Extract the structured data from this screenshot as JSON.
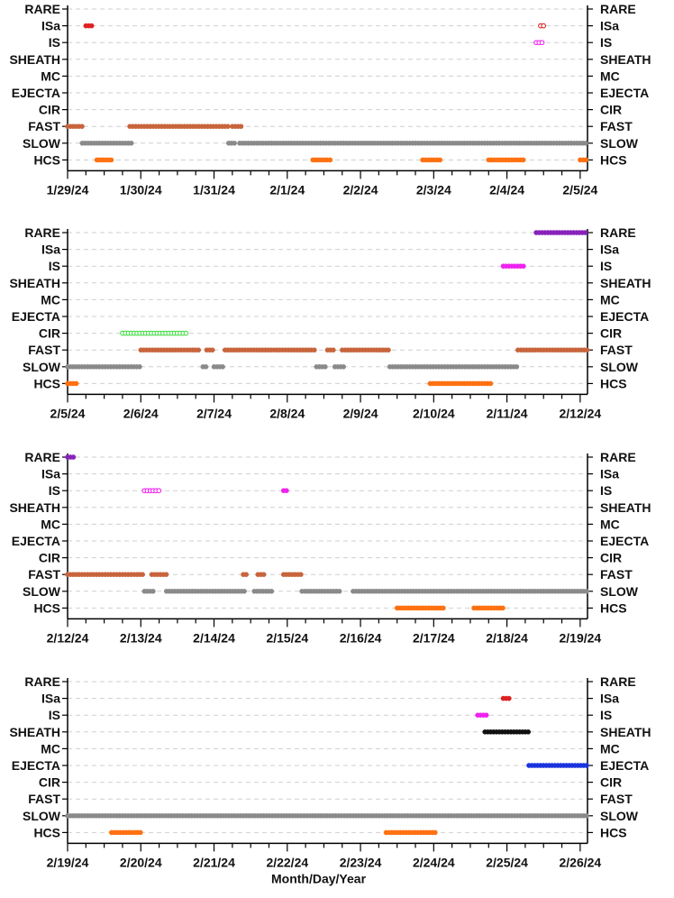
{
  "chart_data": [
    {
      "type": "scatter",
      "x_unit": "days",
      "categories": [
        "RARE",
        "ISa",
        "IS",
        "SHEATH",
        "MC",
        "EJECTA",
        "CIR",
        "FAST",
        "SLOW",
        "HCS"
      ],
      "tick_labels": [
        "1/29/24",
        "1/30/24",
        "1/31/24",
        "2/1/24",
        "2/2/24",
        "2/3/24",
        "2/4/24",
        "2/5/24"
      ],
      "xlim": [
        "1/29/24",
        "2/5/24"
      ],
      "grid": true,
      "series": [
        {
          "category": "ISa",
          "color": "#dd2222",
          "marker": "filled",
          "segments": [
            [
              0.25,
              0.35
            ]
          ]
        },
        {
          "category": "ISa",
          "color": "#dd2222",
          "marker": "open",
          "segments": [
            [
              6.46,
              6.52
            ]
          ]
        },
        {
          "category": "IS",
          "color": "#ee22ee",
          "marker": "open",
          "segments": [
            [
              6.4,
              6.5
            ]
          ]
        },
        {
          "category": "FAST",
          "color": "#c8643c",
          "marker": "filled",
          "segments": [
            [
              0.0,
              0.2
            ],
            [
              0.85,
              2.2
            ],
            [
              2.25,
              2.4
            ]
          ]
        },
        {
          "category": "SLOW",
          "color": "#8a8a8a",
          "marker": "filled",
          "segments": [
            [
              0.2,
              0.9
            ],
            [
              2.2,
              2.3
            ],
            [
              2.35,
              7.1
            ]
          ]
        },
        {
          "category": "HCS",
          "color": "#ff7010",
          "marker": "filled",
          "segments": [
            [
              0.4,
              0.6
            ],
            [
              3.35,
              3.6
            ],
            [
              4.85,
              5.1
            ],
            [
              5.75,
              6.25
            ],
            [
              7.0,
              7.3
            ]
          ]
        }
      ]
    },
    {
      "type": "scatter",
      "x_unit": "days",
      "categories": [
        "RARE",
        "ISa",
        "IS",
        "SHEATH",
        "MC",
        "EJECTA",
        "CIR",
        "FAST",
        "SLOW",
        "HCS"
      ],
      "tick_labels": [
        "2/5/24",
        "2/6/24",
        "2/7/24",
        "2/8/24",
        "2/9/24",
        "2/10/24",
        "2/11/24",
        "2/12/24"
      ],
      "xlim": [
        "2/5/24",
        "2/12/24"
      ],
      "grid": true,
      "series": [
        {
          "category": "RARE",
          "color": "#8822bb",
          "marker": "filled",
          "segments": [
            [
              6.4,
              7.1
            ]
          ]
        },
        {
          "category": "IS",
          "color": "#ee22ee",
          "marker": "filled",
          "segments": [
            [
              5.95,
              6.25
            ]
          ]
        },
        {
          "category": "CIR",
          "color": "#44dd44",
          "marker": "open",
          "segments": [
            [
              0.75,
              1.65
            ]
          ]
        },
        {
          "category": "FAST",
          "color": "#c8643c",
          "marker": "filled",
          "segments": [
            [
              1.0,
              1.8
            ],
            [
              1.9,
              2.0
            ],
            [
              2.15,
              3.4
            ],
            [
              3.55,
              3.65
            ],
            [
              3.75,
              4.4
            ],
            [
              6.15,
              7.1
            ]
          ]
        },
        {
          "category": "SLOW",
          "color": "#8a8a8a",
          "marker": "filled",
          "segments": [
            [
              0.0,
              1.0
            ],
            [
              1.85,
              1.9
            ],
            [
              2.0,
              2.15
            ],
            [
              3.4,
              3.55
            ],
            [
              3.65,
              3.8
            ],
            [
              4.4,
              6.15
            ]
          ]
        },
        {
          "category": "HCS",
          "color": "#ff7010",
          "marker": "filled",
          "segments": [
            [
              0.0,
              0.15
            ],
            [
              4.95,
              5.8
            ]
          ]
        }
      ]
    },
    {
      "type": "scatter",
      "x_unit": "days",
      "categories": [
        "RARE",
        "ISa",
        "IS",
        "SHEATH",
        "MC",
        "EJECTA",
        "CIR",
        "FAST",
        "SLOW",
        "HCS"
      ],
      "tick_labels": [
        "2/12/24",
        "2/13/24",
        "2/14/24",
        "2/15/24",
        "2/16/24",
        "2/17/24",
        "2/18/24",
        "2/19/24"
      ],
      "xlim": [
        "2/12/24",
        "2/19/24"
      ],
      "grid": true,
      "series": [
        {
          "category": "RARE",
          "color": "#8822bb",
          "marker": "filled",
          "segments": [
            [
              0.0,
              0.1
            ]
          ]
        },
        {
          "category": "IS",
          "color": "#ee22ee",
          "marker": "open",
          "segments": [
            [
              1.05,
              1.25
            ]
          ]
        },
        {
          "category": "IS",
          "color": "#ee22ee",
          "marker": "filled",
          "segments": [
            [
              2.95,
              3.02
            ]
          ]
        },
        {
          "category": "FAST",
          "color": "#c8643c",
          "marker": "filled",
          "segments": [
            [
              0.0,
              1.05
            ],
            [
              1.15,
              1.35
            ],
            [
              2.4,
              2.45
            ],
            [
              2.6,
              2.7
            ],
            [
              2.95,
              3.2
            ]
          ]
        },
        {
          "category": "SLOW",
          "color": "#8a8a8a",
          "marker": "filled",
          "segments": [
            [
              1.05,
              1.2
            ],
            [
              1.35,
              2.45
            ],
            [
              2.55,
              2.8
            ],
            [
              3.2,
              3.75
            ],
            [
              3.9,
              7.1
            ]
          ]
        },
        {
          "category": "HCS",
          "color": "#ff7010",
          "marker": "filled",
          "segments": [
            [
              4.5,
              5.15
            ],
            [
              5.55,
              5.95
            ]
          ]
        }
      ]
    },
    {
      "type": "scatter",
      "x_unit": "days",
      "categories": [
        "RARE",
        "ISa",
        "IS",
        "SHEATH",
        "MC",
        "EJECTA",
        "CIR",
        "FAST",
        "SLOW",
        "HCS"
      ],
      "tick_labels": [
        "2/19/24",
        "2/20/24",
        "2/21/24",
        "2/22/24",
        "2/23/24",
        "2/24/24",
        "2/25/24",
        "2/26/24"
      ],
      "xlim": [
        "2/19/24",
        "2/26/24"
      ],
      "xlabel": "Month/Day/Year",
      "grid": true,
      "series": [
        {
          "category": "ISa",
          "color": "#dd2222",
          "marker": "filled",
          "segments": [
            [
              5.95,
              6.05
            ]
          ]
        },
        {
          "category": "IS",
          "color": "#ee22ee",
          "marker": "filled",
          "segments": [
            [
              5.6,
              5.75
            ]
          ]
        },
        {
          "category": "SHEATH",
          "color": "#111111",
          "marker": "filled",
          "segments": [
            [
              5.7,
              6.3
            ]
          ]
        },
        {
          "category": "EJECTA",
          "color": "#1a33dd",
          "marker": "filled",
          "segments": [
            [
              6.3,
              7.1
            ]
          ]
        },
        {
          "category": "SLOW",
          "color": "#8a8a8a",
          "marker": "filled",
          "segments": [
            [
              0.0,
              7.1
            ]
          ]
        },
        {
          "category": "HCS",
          "color": "#ff7010",
          "marker": "filled",
          "segments": [
            [
              0.6,
              1.0
            ],
            [
              4.35,
              5.05
            ]
          ]
        }
      ]
    }
  ]
}
